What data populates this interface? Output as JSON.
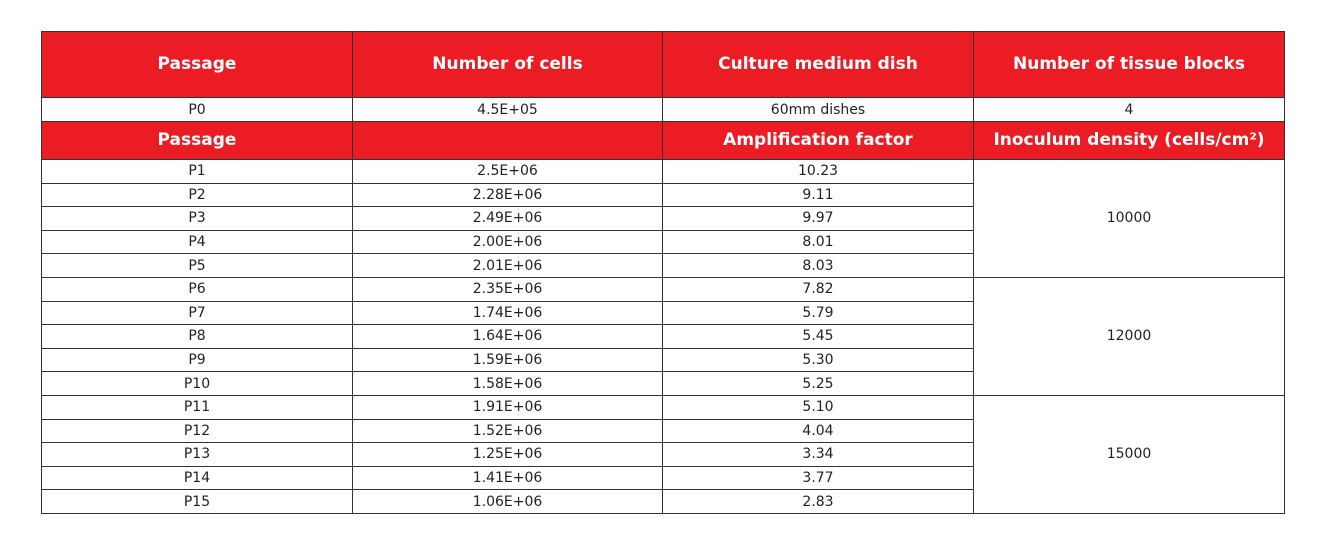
{
  "header1": {
    "passage": "Passage",
    "cells": "Number of cells",
    "dish": "Culture medium dish",
    "blocks": "Number of tissue blocks"
  },
  "p0": {
    "passage": "P0",
    "cells": "4.5E+05",
    "dish": "60mm dishes",
    "blocks": "4"
  },
  "header2": {
    "passage": "Passage",
    "cells": "",
    "amplification": "Amplification factor",
    "density": "Inoculum density (cells/cm²)"
  },
  "rows": [
    {
      "passage": "P1",
      "cells": "2.5E+06",
      "factor": "10.23"
    },
    {
      "passage": "P2",
      "cells": "2.28E+06",
      "factor": "9.11"
    },
    {
      "passage": "P3",
      "cells": "2.49E+06",
      "factor": "9.97"
    },
    {
      "passage": "P4",
      "cells": "2.00E+06",
      "factor": "8.01"
    },
    {
      "passage": "P5",
      "cells": "2.01E+06",
      "factor": "8.03"
    },
    {
      "passage": "P6",
      "cells": "2.35E+06",
      "factor": "7.82"
    },
    {
      "passage": "P7",
      "cells": "1.74E+06",
      "factor": "5.79"
    },
    {
      "passage": "P8",
      "cells": "1.64E+06",
      "factor": "5.45"
    },
    {
      "passage": "P9",
      "cells": "1.59E+06",
      "factor": "5.30"
    },
    {
      "passage": "P10",
      "cells": "1.58E+06",
      "factor": "5.25"
    },
    {
      "passage": "P11",
      "cells": "1.91E+06",
      "factor": "5.10"
    },
    {
      "passage": "P12",
      "cells": "1.52E+06",
      "factor": "4.04"
    },
    {
      "passage": "P13",
      "cells": "1.25E+06",
      "factor": "3.34"
    },
    {
      "passage": "P14",
      "cells": "1.41E+06",
      "factor": "3.77"
    },
    {
      "passage": "P15",
      "cells": "1.06E+06",
      "factor": "2.83"
    }
  ],
  "densities": [
    "10000",
    "12000",
    "15000"
  ],
  "colors": {
    "header_bg": "#ec1c24",
    "header_text": "#ffffff",
    "border": "#333333"
  }
}
